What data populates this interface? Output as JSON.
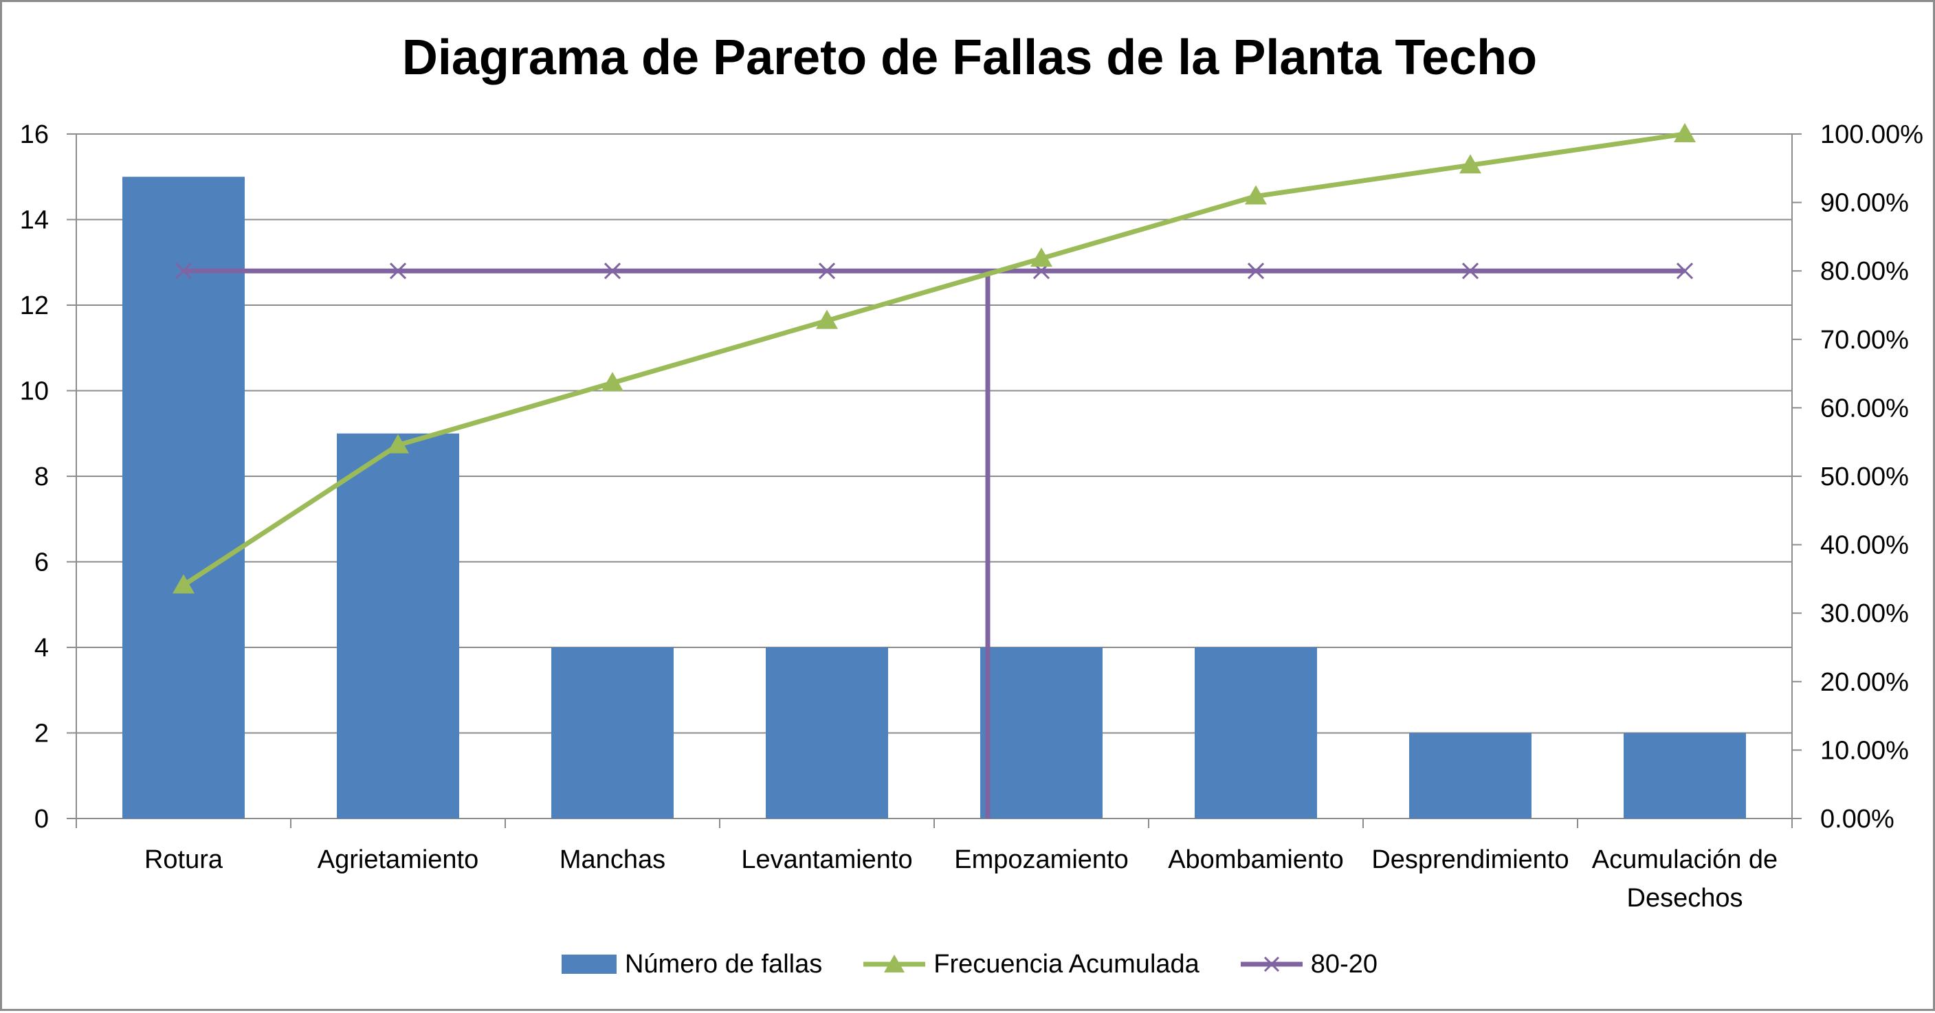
{
  "chart_data": {
    "type": "bar",
    "title": "Diagrama de Pareto de Fallas de la Planta Techo",
    "categories": [
      "Rotura",
      "Agrietamiento",
      "Manchas",
      "Levantamiento",
      "Empozamiento",
      "Abombamiento",
      "Desprendimiento",
      "Acumulación de Desechos"
    ],
    "series": [
      {
        "name": "Número de fallas",
        "type": "bar",
        "axis": "left",
        "color": "#4f81bd",
        "values": [
          15,
          9,
          4,
          4,
          4,
          4,
          2,
          2
        ]
      },
      {
        "name": "Frecuencia Acumulada",
        "type": "line",
        "axis": "right",
        "color": "#9bbb59",
        "marker": "triangle",
        "values": [
          0.3409,
          0.5455,
          0.6364,
          0.7273,
          0.8182,
          0.9091,
          0.9545,
          1.0
        ]
      },
      {
        "name": "80-20",
        "type": "line",
        "axis": "right",
        "color": "#8064a2",
        "marker": "x",
        "values": [
          0.8,
          0.8,
          0.8,
          0.8,
          0.8,
          0.8,
          0.8,
          0.8
        ]
      }
    ],
    "cutoff": {
      "category_index": 3.75,
      "value": 0.8,
      "color": "#8064a2"
    },
    "ylim": [
      0,
      16
    ],
    "yticks": [
      0,
      2,
      4,
      6,
      8,
      10,
      12,
      14,
      16
    ],
    "y2lim": [
      0,
      1
    ],
    "y2ticks": [
      "0.00%",
      "10.00%",
      "20.00%",
      "30.00%",
      "40.00%",
      "50.00%",
      "60.00%",
      "70.00%",
      "80.00%",
      "90.00%",
      "100.00%"
    ],
    "grid": true,
    "legend_position": "bottom",
    "colors": {
      "gridline": "#8c8c8c",
      "axis": "#8c8c8c",
      "border": "#8c8c8c"
    }
  }
}
